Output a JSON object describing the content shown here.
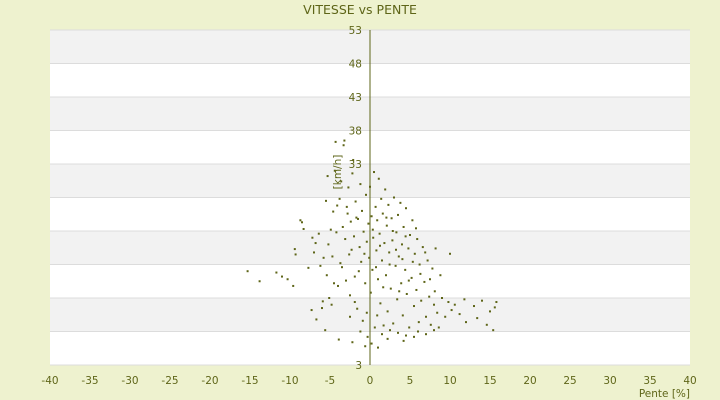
{
  "chart_data": {
    "type": "scatter",
    "title": "VITESSE vs PENTE",
    "xlabel": "Pente [%]",
    "ylabel": "[km/h]",
    "xlim": [
      -40,
      40
    ],
    "ylim": [
      3,
      53
    ],
    "x_ticks": [
      -40,
      -35,
      -30,
      -25,
      -20,
      -15,
      -10,
      -5,
      0,
      5,
      10,
      15,
      20,
      25,
      30,
      35,
      40
    ],
    "y_ticks": [
      3,
      8,
      13,
      18,
      23,
      28,
      33,
      38,
      43,
      48,
      53
    ],
    "y_tick_labels_shown": [
      "3",
      "",
      "",
      "",
      "",
      "",
      "33",
      "38",
      "43",
      "48",
      "53"
    ],
    "grid": "horizontal alternating bands",
    "legend": "none",
    "colors": {
      "background": "#eef2cf",
      "plot_band_light": "#ffffff",
      "plot_band_shade": "#f2f2f2",
      "gridline": "#dcdcdc",
      "marker": "#5e6518",
      "text": "#5e6518"
    },
    "series": [
      {
        "points": [
          [
            -15.3,
            17.0
          ],
          [
            -13.8,
            15.5
          ],
          [
            -11.7,
            16.8
          ],
          [
            -11.0,
            16.2
          ],
          [
            -10.3,
            15.8
          ],
          [
            -9.6,
            14.8
          ],
          [
            -9.4,
            20.3
          ],
          [
            -9.3,
            19.5
          ],
          [
            -8.7,
            24.6
          ],
          [
            -8.5,
            24.3
          ],
          [
            -8.3,
            23.3
          ],
          [
            -7.7,
            17.5
          ],
          [
            -7.3,
            11.2
          ],
          [
            -7.0,
            19.8
          ],
          [
            -6.7,
            9.8
          ],
          [
            -6.2,
            17.8
          ],
          [
            -6.0,
            11.5
          ],
          [
            -5.9,
            12.5
          ],
          [
            -5.8,
            19.0
          ],
          [
            -5.6,
            8.2
          ],
          [
            -5.5,
            27.5
          ],
          [
            -5.3,
            31.2
          ],
          [
            -5.1,
            13.0
          ],
          [
            -4.9,
            23.2
          ],
          [
            -4.8,
            12.0
          ],
          [
            -4.6,
            25.9
          ],
          [
            -4.4,
            32.0
          ],
          [
            -4.3,
            36.3
          ],
          [
            -4.2,
            22.8
          ],
          [
            -4.0,
            14.8
          ],
          [
            -3.8,
            27.8
          ],
          [
            -3.6,
            30.4
          ],
          [
            -3.5,
            17.6
          ],
          [
            -3.3,
            35.8
          ],
          [
            -3.2,
            36.5
          ],
          [
            -3.1,
            21.8
          ],
          [
            -2.9,
            26.6
          ],
          [
            -2.7,
            29.5
          ],
          [
            -2.6,
            19.5
          ],
          [
            -2.5,
            13.4
          ],
          [
            -2.4,
            24.4
          ],
          [
            -2.2,
            31.6
          ],
          [
            -2.1,
            33.6
          ],
          [
            -2.0,
            22.2
          ],
          [
            -1.9,
            16.2
          ],
          [
            -1.8,
            27.4
          ],
          [
            -1.6,
            11.4
          ],
          [
            -1.5,
            24.8
          ],
          [
            -1.3,
            20.6
          ],
          [
            -1.2,
            30.0
          ],
          [
            -1.1,
            18.4
          ],
          [
            -1.0,
            26.0
          ],
          [
            -0.9,
            9.6
          ],
          [
            -0.8,
            22.9
          ],
          [
            -0.6,
            15.2
          ],
          [
            -0.5,
            28.4
          ],
          [
            -0.4,
            21.4
          ],
          [
            -0.3,
            7.2
          ],
          [
            -0.2,
            24.1
          ],
          [
            -0.1,
            19.0
          ],
          [
            0.0,
            29.6
          ],
          [
            0.1,
            13.8
          ],
          [
            0.2,
            25.2
          ],
          [
            0.3,
            17.2
          ],
          [
            0.4,
            22.0
          ],
          [
            0.5,
            31.8
          ],
          [
            0.6,
            8.6
          ],
          [
            0.7,
            26.6
          ],
          [
            0.8,
            20.1
          ],
          [
            0.9,
            24.6
          ],
          [
            1.0,
            15.8
          ],
          [
            1.1,
            30.8
          ],
          [
            1.2,
            22.6
          ],
          [
            1.3,
            12.2
          ],
          [
            1.4,
            27.8
          ],
          [
            1.5,
            18.6
          ],
          [
            1.6,
            25.6
          ],
          [
            1.7,
            8.9
          ],
          [
            1.8,
            21.2
          ],
          [
            1.9,
            29.2
          ],
          [
            2.0,
            16.4
          ],
          [
            2.1,
            23.8
          ],
          [
            2.2,
            11.0
          ],
          [
            2.3,
            26.9
          ],
          [
            2.4,
            19.8
          ],
          [
            2.6,
            14.4
          ],
          [
            2.7,
            24.9
          ],
          [
            2.8,
            21.6
          ],
          [
            2.9,
            9.2
          ],
          [
            3.0,
            28.0
          ],
          [
            3.2,
            17.8
          ],
          [
            3.3,
            22.8
          ],
          [
            3.4,
            12.8
          ],
          [
            3.5,
            25.4
          ],
          [
            3.6,
            19.2
          ],
          [
            3.8,
            27.2
          ],
          [
            3.9,
            15.2
          ],
          [
            4.0,
            21.0
          ],
          [
            4.1,
            10.4
          ],
          [
            4.2,
            23.6
          ],
          [
            4.4,
            17.2
          ],
          [
            4.5,
            26.4
          ],
          [
            4.6,
            13.6
          ],
          [
            4.8,
            20.4
          ],
          [
            4.9,
            8.6
          ],
          [
            5.0,
            22.4
          ],
          [
            5.2,
            16.0
          ],
          [
            5.3,
            24.6
          ],
          [
            5.5,
            11.8
          ],
          [
            5.6,
            19.6
          ],
          [
            5.8,
            14.2
          ],
          [
            5.9,
            21.8
          ],
          [
            6.1,
            9.4
          ],
          [
            6.2,
            18.0
          ],
          [
            6.4,
            12.6
          ],
          [
            6.6,
            20.6
          ],
          [
            6.8,
            15.4
          ],
          [
            7.0,
            10.2
          ],
          [
            7.2,
            18.6
          ],
          [
            7.4,
            13.2
          ],
          [
            7.6,
            9.0
          ],
          [
            7.8,
            17.4
          ],
          [
            8.0,
            12.0
          ],
          [
            8.2,
            20.4
          ],
          [
            8.4,
            10.8
          ],
          [
            8.6,
            8.6
          ],
          [
            9.0,
            13.0
          ],
          [
            9.4,
            10.2
          ],
          [
            9.8,
            12.4
          ],
          [
            10.0,
            19.6
          ],
          [
            10.2,
            11.2
          ],
          [
            10.6,
            12.0
          ],
          [
            11.2,
            10.6
          ],
          [
            11.8,
            12.8
          ],
          [
            12.0,
            9.4
          ],
          [
            13.0,
            11.8
          ],
          [
            13.4,
            10.0
          ],
          [
            14.0,
            12.6
          ],
          [
            14.6,
            9.0
          ],
          [
            15.0,
            11.0
          ],
          [
            15.4,
            8.2
          ],
          [
            15.6,
            11.6
          ],
          [
            15.8,
            12.4
          ],
          [
            -5.2,
            21.0
          ],
          [
            -4.7,
            19.2
          ],
          [
            -4.1,
            26.8
          ],
          [
            -3.7,
            18.2
          ],
          [
            -3.4,
            23.6
          ],
          [
            -3.0,
            15.6
          ],
          [
            -2.8,
            25.6
          ],
          [
            -2.3,
            20.2
          ],
          [
            -1.7,
            25.0
          ],
          [
            -1.4,
            17.0
          ],
          [
            -0.7,
            19.6
          ],
          [
            0.35,
            23.2
          ],
          [
            0.75,
            17.6
          ],
          [
            1.25,
            20.8
          ],
          [
            1.65,
            14.6
          ],
          [
            2.05,
            25.0
          ],
          [
            2.45,
            18.0
          ],
          [
            2.85,
            23.0
          ],
          [
            3.25,
            20.2
          ],
          [
            3.65,
            14.0
          ],
          [
            4.05,
            18.8
          ],
          [
            4.45,
            22.2
          ],
          [
            4.85,
            15.6
          ],
          [
            5.35,
            18.4
          ],
          [
            5.75,
            23.4
          ],
          [
            6.3,
            16.6
          ],
          [
            6.9,
            19.8
          ],
          [
            7.5,
            15.8
          ],
          [
            8.1,
            14.0
          ],
          [
            8.8,
            16.4
          ],
          [
            -6.4,
            22.6
          ],
          [
            -6.8,
            21.2
          ],
          [
            -7.2,
            22.0
          ],
          [
            -5.4,
            16.4
          ],
          [
            -4.5,
            15.2
          ],
          [
            -2.5,
            10.2
          ],
          [
            -1.9,
            12.4
          ],
          [
            -1.2,
            8.0
          ],
          [
            -0.4,
            10.8
          ],
          [
            0.9,
            10.4
          ],
          [
            1.5,
            7.6
          ],
          [
            2.5,
            8.2
          ],
          [
            3.5,
            7.8
          ],
          [
            4.5,
            7.4
          ],
          [
            6.0,
            8.0
          ],
          [
            7.0,
            7.6
          ],
          [
            8.0,
            8.2
          ],
          [
            -3.9,
            6.8
          ],
          [
            -2.2,
            6.4
          ],
          [
            0.2,
            6.2
          ],
          [
            1.0,
            5.6
          ],
          [
            -0.6,
            5.8
          ],
          [
            2.2,
            6.9
          ],
          [
            4.2,
            6.6
          ],
          [
            5.5,
            7.2
          ]
        ]
      }
    ]
  }
}
